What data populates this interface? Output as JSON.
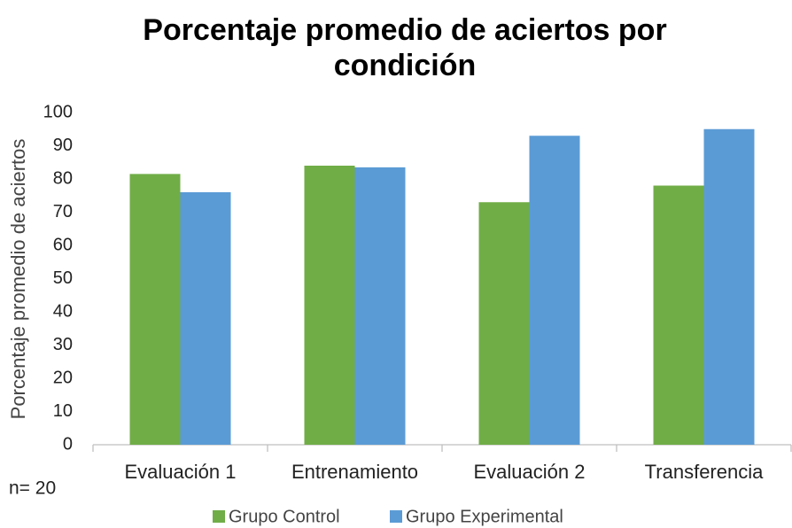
{
  "chart_data": {
    "type": "bar",
    "title": "Porcentaje promedio de aciertos por condición",
    "y_label": "Porcentaje promedio de aciertos",
    "annotation": "n= 20",
    "categories": [
      "Evaluación 1",
      "Entrenamiento",
      "Evaluación 2",
      "Transferencia"
    ],
    "series": [
      {
        "name": "Grupo Control",
        "color": "#70ad47",
        "values": [
          81.5,
          84,
          73,
          78
        ]
      },
      {
        "name": "Grupo Experimental",
        "color": "#5b9bd5",
        "values": [
          76,
          83.5,
          93,
          95
        ]
      }
    ],
    "ylim": [
      0,
      100
    ],
    "yticks": [
      0,
      10,
      20,
      30,
      40,
      50,
      60,
      70,
      80,
      90,
      100
    ],
    "grid": false,
    "legend": "bottom"
  }
}
